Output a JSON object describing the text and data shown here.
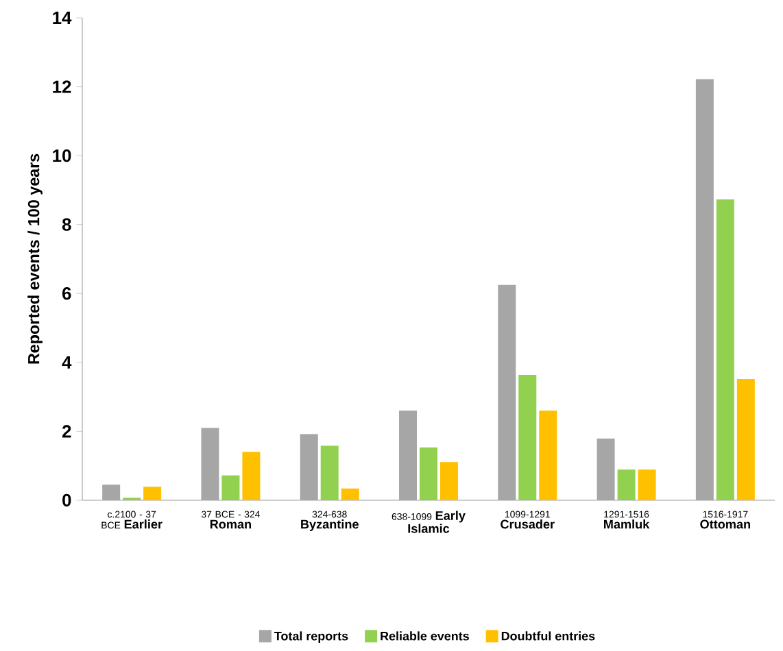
{
  "chart_data": {
    "type": "bar",
    "ylabel": "Reported events / 100 years",
    "categories": [
      "c.2100 - 37 BCE **Earlier**",
      "37 BCE - 324 **Roman**",
      "324-638 **Byzantine**",
      "638-1099 **Early Islamic**",
      "1099-1291 **Crusader**",
      "1291-1516 **Mamluk**",
      "1516-1917 **Ottoman**"
    ],
    "series": [
      {
        "name": "Total reports",
        "color": "#a6a6a6",
        "values": [
          0.45,
          2.1,
          1.92,
          2.6,
          6.25,
          1.79,
          12.22
        ]
      },
      {
        "name": "Reliable events",
        "color": "#92d050",
        "values": [
          0.07,
          0.72,
          1.58,
          1.53,
          3.64,
          0.89,
          8.73
        ]
      },
      {
        "name": "Doubtful entries",
        "color": "#ffc000",
        "values": [
          0.39,
          1.4,
          0.34,
          1.11,
          2.6,
          0.89,
          3.52
        ]
      }
    ],
    "ylim": [
      0,
      14
    ],
    "yticks": [
      0,
      2,
      4,
      6,
      8,
      10,
      12,
      14
    ],
    "grid": false,
    "legend": "bottom"
  }
}
